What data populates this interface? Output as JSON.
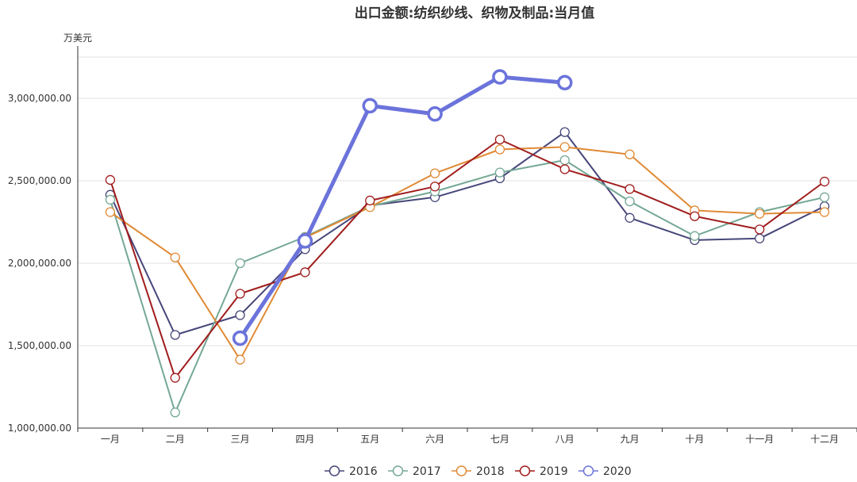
{
  "chart_data": {
    "type": "line",
    "title": "出口金额:纺织纱线、织物及制品:当月值",
    "ylabel": "万美元",
    "xlabel": "",
    "categories": [
      "一月",
      "二月",
      "三月",
      "四月",
      "五月",
      "六月",
      "七月",
      "八月",
      "九月",
      "十月",
      "十一月",
      "十二月"
    ],
    "ylim": [
      1000000,
      3250000
    ],
    "yticks": [
      1000000,
      1500000,
      2000000,
      2500000,
      3000000
    ],
    "ytick_labels": [
      "1,000,000.00",
      "1,500,000.00",
      "2,000,000.00",
      "2,500,000.00",
      "3,000,000.00"
    ],
    "grid": true,
    "legend_position": "bottom",
    "series": [
      {
        "name": "2016",
        "color": "#46467a",
        "values": [
          2415000,
          1565000,
          1685000,
          2085000,
          2350000,
          2400000,
          2515000,
          2795000,
          2275000,
          2140000,
          2150000,
          2345000
        ]
      },
      {
        "name": "2017",
        "color": "#74a895",
        "values": [
          2385000,
          1095000,
          2000000,
          2160000,
          2345000,
          2435000,
          2550000,
          2625000,
          2375000,
          2165000,
          2310000,
          2400000
        ]
      },
      {
        "name": "2018",
        "color": "#e08a35",
        "values": [
          2310000,
          2035000,
          1415000,
          2155000,
          2340000,
          2545000,
          2690000,
          2705000,
          2660000,
          2320000,
          2300000,
          2310000
        ]
      },
      {
        "name": "2019",
        "color": "#a01c1c",
        "values": [
          2505000,
          1305000,
          1815000,
          1945000,
          2380000,
          2465000,
          2750000,
          2570000,
          2450000,
          2285000,
          2205000,
          2495000
        ]
      },
      {
        "name": "2020",
        "color": "#6b73db",
        "values": [
          null,
          null,
          1545000,
          2135000,
          2955000,
          2905000,
          3130000,
          3095000,
          null,
          null,
          null,
          null
        ],
        "emphasis": true
      }
    ]
  }
}
